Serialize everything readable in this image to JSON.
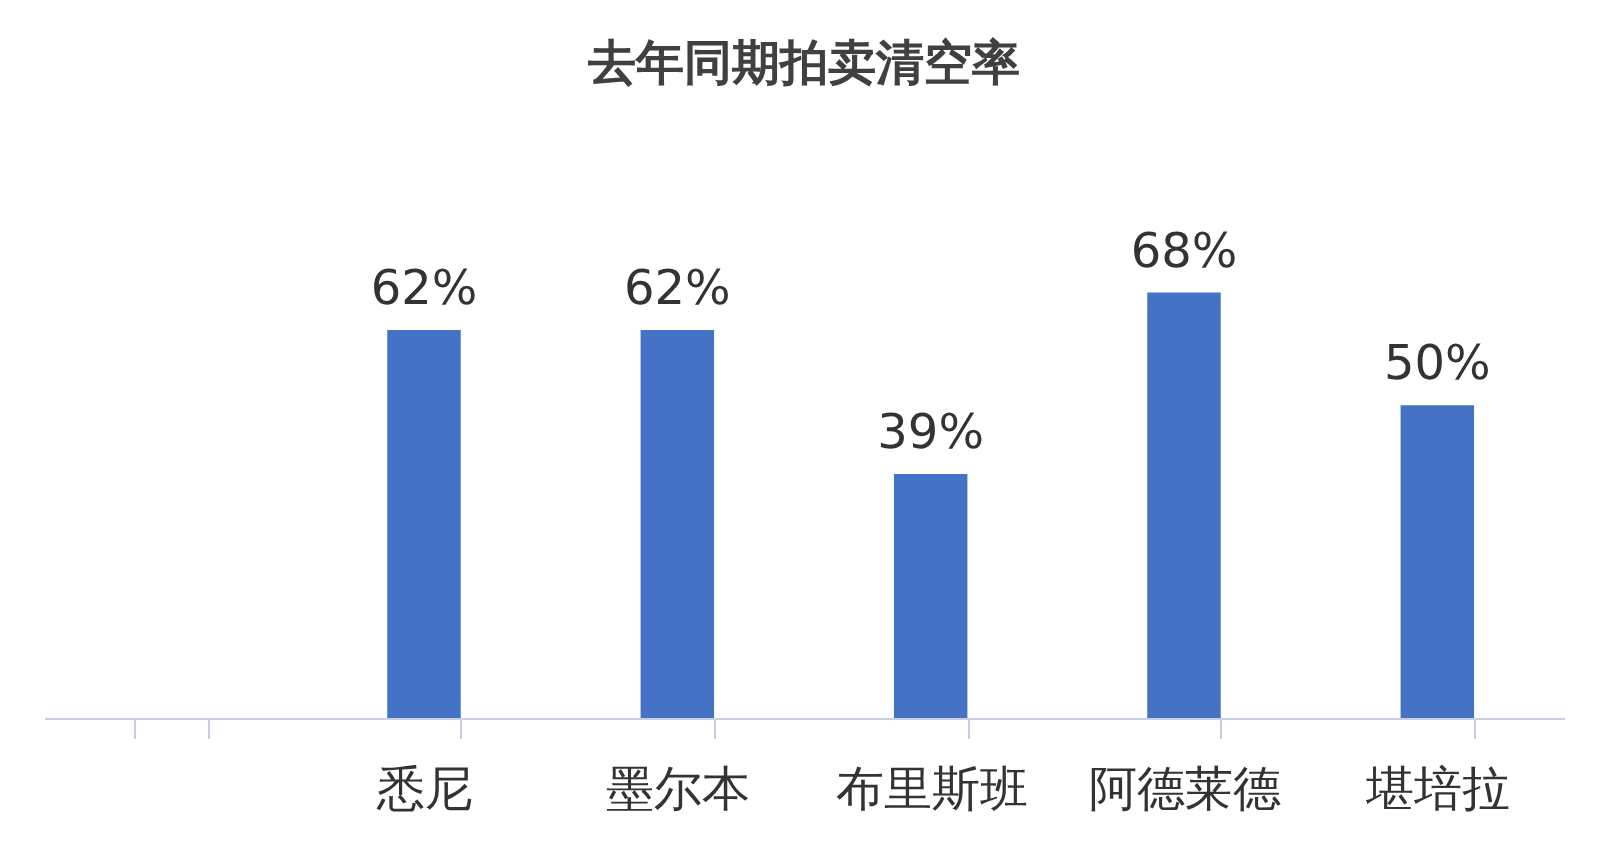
{
  "chart_data": {
    "type": "bar",
    "title": "去年同期拍卖清空率",
    "categories": [
      null,
      "悉尼",
      "墨尔本",
      "布里斯班",
      "阿德莱德",
      "堪培拉"
    ],
    "values": [
      null,
      62,
      62,
      39,
      68,
      50
    ],
    "value_labels": [
      null,
      "62%",
      "62%",
      "39%",
      "68%",
      "50%"
    ],
    "color": "#4472c4",
    "legend": false,
    "grid": false
  }
}
